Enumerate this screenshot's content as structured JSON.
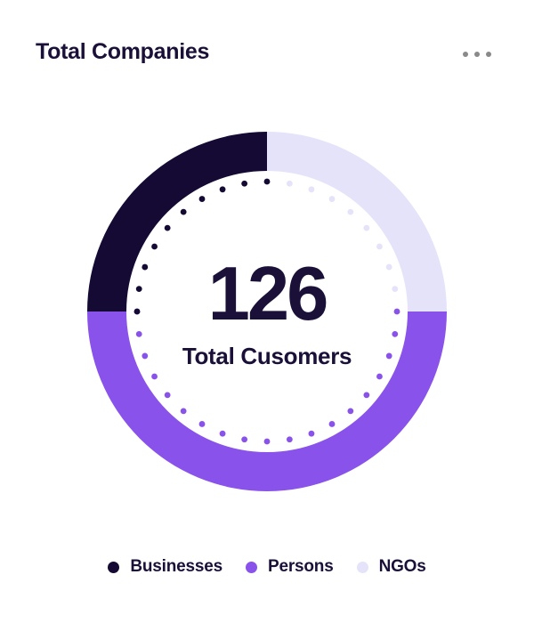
{
  "card": {
    "title": "Total Companies",
    "menu_icon": "ellipsis-menu"
  },
  "colors": {
    "businesses": "#150a33",
    "persons": "#8952ea",
    "ngos": "#e4e3f9",
    "text_dark": "#1a1038",
    "menu_dots": "#8a8a8a",
    "background": "#ffffff"
  },
  "chart_data": {
    "type": "pie",
    "variant": "donut-with-dotted-inner-ring",
    "title": "Total Companies",
    "center_value": "126",
    "center_label": "Total Cusomers",
    "total": 126,
    "series": [
      {
        "name": "Businesses",
        "share_pct": 25,
        "color": "#150a33"
      },
      {
        "name": "Persons",
        "share_pct": 50,
        "color": "#8952ea"
      },
      {
        "name": "NGOs",
        "share_pct": 25,
        "color": "#e4e3f9"
      }
    ],
    "segments_clockwise_from_top": [
      {
        "name": "NGOs",
        "start_deg": 0,
        "end_deg": 90
      },
      {
        "name": "Persons",
        "start_deg": 90,
        "end_deg": 270
      },
      {
        "name": "Businesses",
        "start_deg": 270,
        "end_deg": 360
      }
    ],
    "ring": {
      "outer_radius": 202,
      "inner_radius": 158,
      "dot_ring_radius": 146,
      "dot_radius": 3.4,
      "dot_step_deg": 10
    },
    "legend_position": "bottom"
  },
  "legend": {
    "items": [
      {
        "label": "Businesses",
        "color": "#150a33"
      },
      {
        "label": "Persons",
        "color": "#8952ea"
      },
      {
        "label": "NGOs",
        "color": "#e4e3f9"
      }
    ]
  }
}
